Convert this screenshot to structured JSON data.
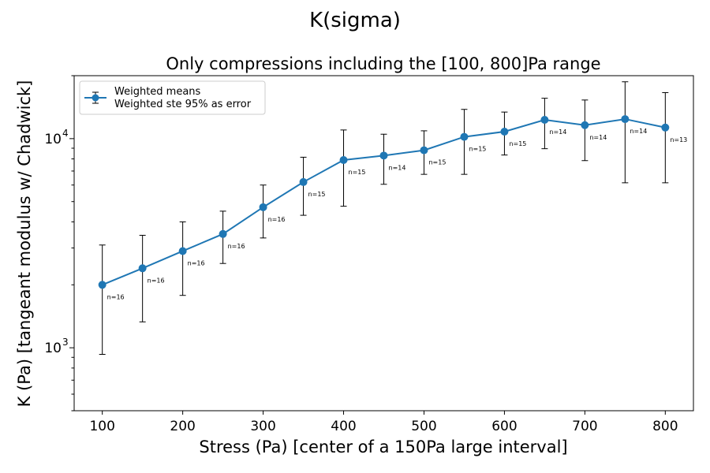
{
  "figure": {
    "suptitle": "K(sigma)",
    "title": "Only compressions including the [100, 800]Pa range"
  },
  "legend": {
    "position": "upper-left",
    "entries": [
      "Weighted means",
      "Weighted ste 95% as error"
    ]
  },
  "colors": {
    "series": "#1f77b4",
    "errorbar": "#000000",
    "axis": "#000000",
    "background": "#ffffff"
  },
  "chart_data": {
    "type": "line",
    "title": "Only compressions including the [100, 800]Pa range",
    "suptitle": "K(sigma)",
    "xlabel": "Stress (Pa) [center of a 150Pa large interval]",
    "ylabel": "K (Pa) [tangeant modulus w/ Chadwick]",
    "yscale": "log",
    "xlim": [
      65,
      835
    ],
    "ylim": [
      500,
      20000
    ],
    "xticks": [
      100,
      200,
      300,
      400,
      500,
      600,
      700,
      800
    ],
    "yticks": [
      {
        "value": 1000,
        "label": "10",
        "exp": "3"
      },
      {
        "value": 10000,
        "label": "10",
        "exp": "4"
      }
    ],
    "grid": false,
    "legend_position": "upper-left",
    "series": [
      {
        "name": "Weighted means",
        "error_name": "Weighted ste 95% as error",
        "x": [
          100,
          150,
          200,
          250,
          300,
          350,
          400,
          450,
          500,
          550,
          600,
          650,
          700,
          750,
          800
        ],
        "y": [
          2000,
          2400,
          2900,
          3500,
          4700,
          6200,
          7900,
          8300,
          8800,
          10200,
          10800,
          12300,
          11600,
          12400,
          11300
        ],
        "err_low": [
          930,
          1330,
          1780,
          2530,
          3350,
          4300,
          4750,
          6050,
          6750,
          6750,
          8350,
          8950,
          7850,
          6150,
          6150
        ],
        "err_high": [
          3100,
          3450,
          4000,
          4500,
          6000,
          8150,
          11000,
          10500,
          10900,
          13800,
          13400,
          15600,
          15300,
          18700,
          16600
        ],
        "annotations": [
          "n=16",
          "n=16",
          "n=16",
          "n=16",
          "n=16",
          "n=15",
          "n=15",
          "n=14",
          "n=15",
          "n=15",
          "n=15",
          "n=14",
          "n=14",
          "n=14",
          "n=13"
        ]
      }
    ]
  }
}
